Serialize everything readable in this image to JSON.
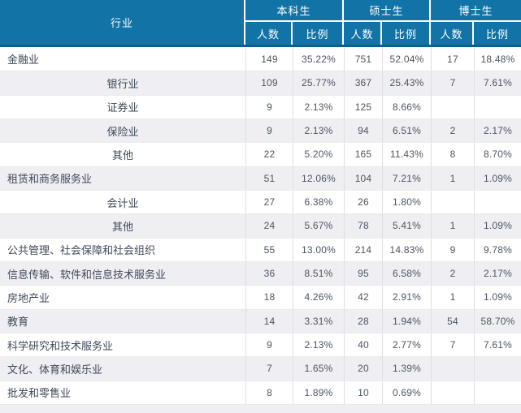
{
  "chart_data": {
    "type": "table",
    "industry_header": "行业",
    "group_headers": [
      "本科生",
      "硕士生",
      "博士生"
    ],
    "sub_headers": [
      "人数",
      "比例"
    ],
    "rows": [
      {
        "industry": "金融业",
        "level": "main",
        "undergrad_count": "149",
        "undergrad_pct": "35.22%",
        "master_count": "751",
        "master_pct": "52.04%",
        "phd_count": "17",
        "phd_pct": "18.48%"
      },
      {
        "industry": "银行业",
        "level": "sub",
        "undergrad_count": "109",
        "undergrad_pct": "25.77%",
        "master_count": "367",
        "master_pct": "25.43%",
        "phd_count": "7",
        "phd_pct": "7.61%"
      },
      {
        "industry": "证券业",
        "level": "sub",
        "undergrad_count": "9",
        "undergrad_pct": "2.13%",
        "master_count": "125",
        "master_pct": "8.66%",
        "phd_count": "",
        "phd_pct": ""
      },
      {
        "industry": "保险业",
        "level": "sub",
        "undergrad_count": "9",
        "undergrad_pct": "2.13%",
        "master_count": "94",
        "master_pct": "6.51%",
        "phd_count": "2",
        "phd_pct": "2.17%"
      },
      {
        "industry": "其他",
        "level": "sub",
        "undergrad_count": "22",
        "undergrad_pct": "5.20%",
        "master_count": "165",
        "master_pct": "11.43%",
        "phd_count": "8",
        "phd_pct": "8.70%"
      },
      {
        "industry": "租赁和商务服务业",
        "level": "main",
        "undergrad_count": "51",
        "undergrad_pct": "12.06%",
        "master_count": "104",
        "master_pct": "7.21%",
        "phd_count": "1",
        "phd_pct": "1.09%"
      },
      {
        "industry": "会计业",
        "level": "sub",
        "undergrad_count": "27",
        "undergrad_pct": "6.38%",
        "master_count": "26",
        "master_pct": "1.80%",
        "phd_count": "",
        "phd_pct": ""
      },
      {
        "industry": "其他",
        "level": "sub",
        "undergrad_count": "24",
        "undergrad_pct": "5.67%",
        "master_count": "78",
        "master_pct": "5.41%",
        "phd_count": "1",
        "phd_pct": "1.09%"
      },
      {
        "industry": "公共管理、社会保障和社会组织",
        "level": "main",
        "undergrad_count": "55",
        "undergrad_pct": "13.00%",
        "master_count": "214",
        "master_pct": "14.83%",
        "phd_count": "9",
        "phd_pct": "9.78%"
      },
      {
        "industry": "信息传输、软件和信息技术服务业",
        "level": "main",
        "undergrad_count": "36",
        "undergrad_pct": "8.51%",
        "master_count": "95",
        "master_pct": "6.58%",
        "phd_count": "2",
        "phd_pct": "2.17%"
      },
      {
        "industry": "房地产业",
        "level": "main",
        "undergrad_count": "18",
        "undergrad_pct": "4.26%",
        "master_count": "42",
        "master_pct": "2.91%",
        "phd_count": "1",
        "phd_pct": "1.09%"
      },
      {
        "industry": "教育",
        "level": "main",
        "undergrad_count": "14",
        "undergrad_pct": "3.31%",
        "master_count": "28",
        "master_pct": "1.94%",
        "phd_count": "54",
        "phd_pct": "58.70%"
      },
      {
        "industry": "科学研究和技术服务业",
        "level": "main",
        "undergrad_count": "9",
        "undergrad_pct": "2.13%",
        "master_count": "40",
        "master_pct": "2.77%",
        "phd_count": "7",
        "phd_pct": "7.61%"
      },
      {
        "industry": "文化、体育和娱乐业",
        "level": "main",
        "undergrad_count": "7",
        "undergrad_pct": "1.65%",
        "master_count": "20",
        "master_pct": "1.39%",
        "phd_count": "",
        "phd_pct": ""
      },
      {
        "industry": "批发和零售业",
        "level": "main",
        "undergrad_count": "8",
        "undergrad_pct": "1.89%",
        "master_count": "10",
        "master_pct": "0.69%",
        "phd_count": "",
        "phd_pct": ""
      }
    ]
  },
  "colors": {
    "header_bg": "#1173a6",
    "header_divider": "#ffffff",
    "header_bottom_border": "#0d5f8e",
    "alt_row_bg": "#efeef2",
    "gridline": "#dfdfe3",
    "industry_text": "#3e4a57",
    "number_text": "#4c5662"
  }
}
